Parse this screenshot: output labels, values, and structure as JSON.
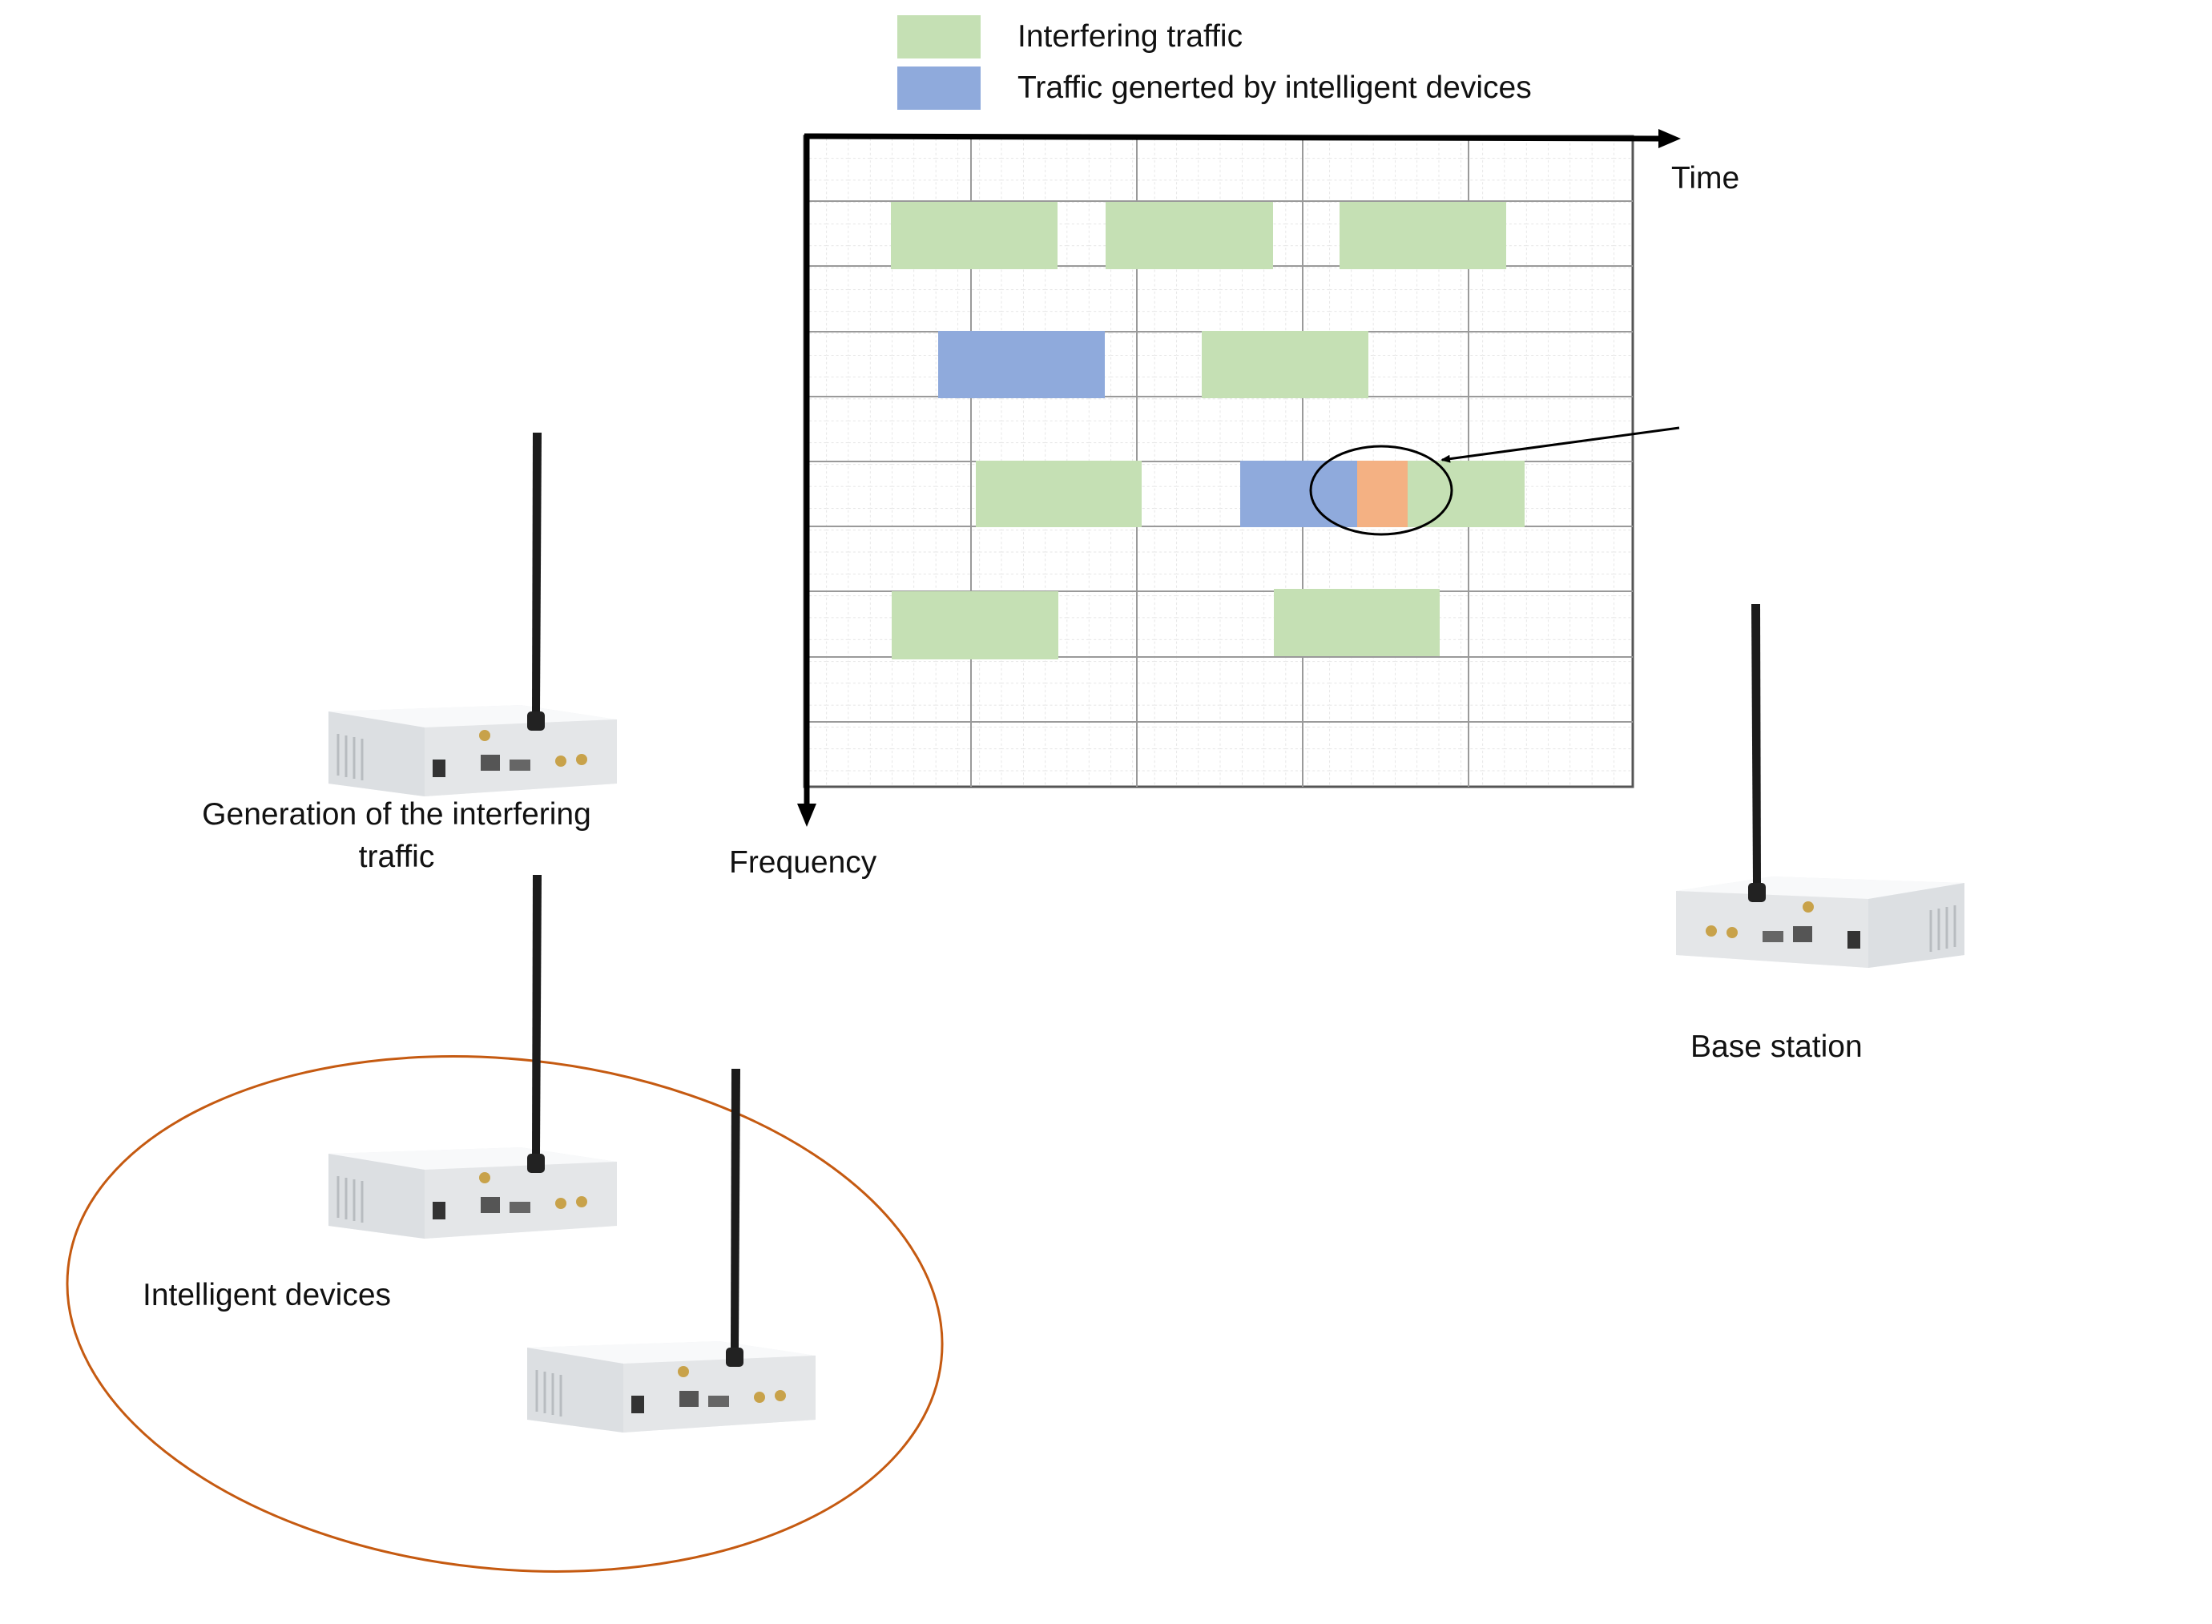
{
  "legend": {
    "interfering": {
      "label": "Interfering traffic",
      "color": "#c5e0b4"
    },
    "intelligent": {
      "label": "Traffic generted by intelligent devices",
      "color": "#8faadc"
    }
  },
  "collision_color": "#f4b183",
  "axes": {
    "time_label": "Time",
    "frequency_label": "Frequency"
  },
  "labels": {
    "interferer": [
      "Generation of the interfering",
      "traffic"
    ],
    "intelligent_devices": "Intelligent devices",
    "base_station": "Base station"
  },
  "device_icon": "sdr-radio-with-antenna",
  "group_outline_color": "#c55a11"
}
